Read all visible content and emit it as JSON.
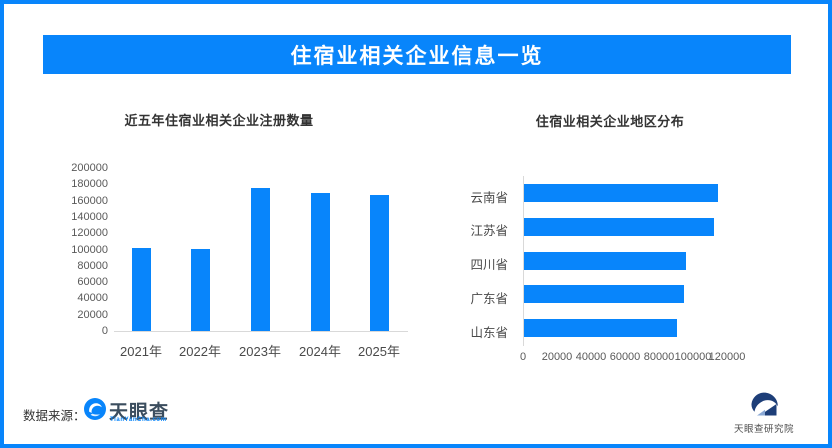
{
  "page": {
    "title": "住宿业相关企业信息一览"
  },
  "colors": {
    "accent": "#0885fb",
    "bar": "#0885fb",
    "axis_line": "#d9d9d9",
    "tick_text": "#595959",
    "category_text": "#4a4a4a",
    "title_text": "#333333",
    "institute_navy": "#1d3e78"
  },
  "chart_data": [
    {
      "type": "bar",
      "orientation": "vertical",
      "title": "近五年住宿业相关企业注册数量",
      "categories": [
        "2021年",
        "2022年",
        "2023年",
        "2024年",
        "2025年"
      ],
      "values": [
        102000,
        100000,
        176000,
        169000,
        167000
      ],
      "ylim": [
        0,
        200000
      ],
      "yticks": [
        0,
        20000,
        40000,
        60000,
        80000,
        100000,
        120000,
        140000,
        160000,
        180000,
        200000
      ],
      "grid": false,
      "legend": false
    },
    {
      "type": "bar",
      "orientation": "horizontal",
      "title": "住宿业相关企业地区分布",
      "categories": [
        "云南省",
        "江苏省",
        "四川省",
        "广东省",
        "山东省"
      ],
      "values": [
        114000,
        112000,
        95000,
        94000,
        90000
      ],
      "xlim": [
        0,
        120000
      ],
      "xticks": [
        0,
        20000,
        40000,
        60000,
        80000,
        100000,
        120000
      ],
      "grid": false,
      "legend": false
    }
  ],
  "footer": {
    "source_label": "数据来源：",
    "source_logo_text": "天眼查",
    "source_logo_sub": "TianYanCha.com",
    "institute_name": "天眼查研究院"
  },
  "icons": {
    "tianyancha_logo": "swirl-eye-icon",
    "institute_logo": "wave-mountain-icon"
  }
}
